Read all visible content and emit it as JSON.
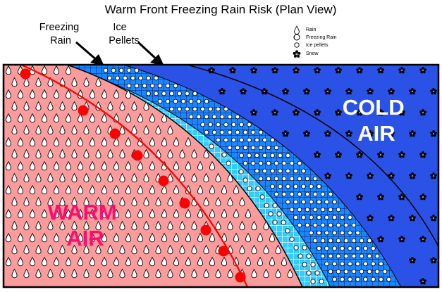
{
  "title": "Warm Front Freezing Rain Risk (Plan View)",
  "callouts": {
    "freezing_rain": [
      "Freezing",
      "Rain"
    ],
    "ice_pellets": [
      "Ice",
      "Pellets"
    ]
  },
  "legend": [
    {
      "icon": "raindrop-icon",
      "label": "Rain"
    },
    {
      "icon": "freezing-rain-icon",
      "label": "Freezing Rain"
    },
    {
      "icon": "ice-pellet-icon",
      "label": "Ice pellets"
    },
    {
      "icon": "snowflake-icon",
      "label": "Snow"
    }
  ],
  "regions": {
    "warm": {
      "line1": "WARM",
      "line2": "AIR"
    },
    "cold": {
      "line1": "COLD",
      "line2": "AIR"
    }
  },
  "colors": {
    "warm_fill": "#fb9b9b",
    "warm_label": "#ff0d6e",
    "front_line": "#ff0000",
    "freezing_zone": "#33ccff",
    "ice_zone": "#1199ff",
    "cold_fill": "#2a52e6",
    "cold_label": "#ffffff"
  }
}
